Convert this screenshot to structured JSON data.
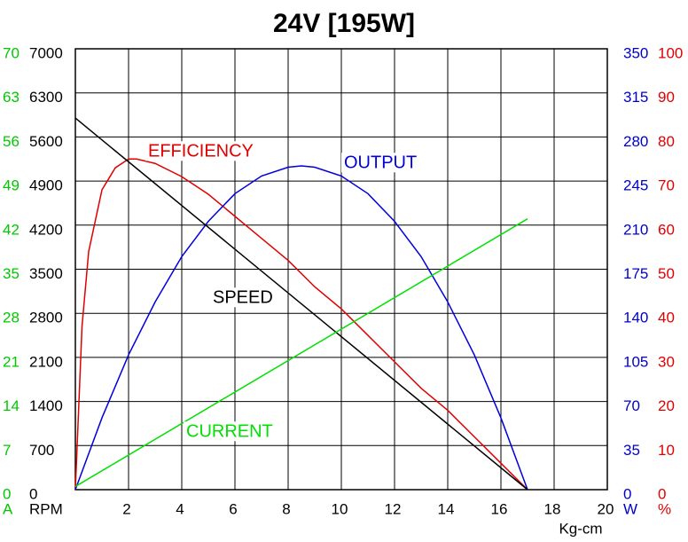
{
  "chart_data": {
    "type": "line",
    "title": "24V [195W]",
    "xlabel": "Kg-cm",
    "xlim": [
      0,
      20
    ],
    "xticks": [
      2,
      4,
      6,
      8,
      10,
      12,
      14,
      16,
      18,
      20
    ],
    "grid": true,
    "y_axes": [
      {
        "label": "A",
        "color": "#00c800",
        "side": "left",
        "lim": [
          0,
          70
        ],
        "ticks": [
          0,
          7,
          14,
          21,
          28,
          35,
          42,
          49,
          56,
          63,
          70
        ]
      },
      {
        "label": "RPM",
        "color": "#000000",
        "side": "left",
        "lim": [
          0,
          7000
        ],
        "ticks": [
          0,
          700,
          1400,
          2100,
          2800,
          3500,
          4200,
          4900,
          5600,
          6300,
          7000
        ]
      },
      {
        "label": "W",
        "color": "#0000cc",
        "side": "right",
        "lim": [
          0,
          350
        ],
        "ticks": [
          0,
          35,
          70,
          105,
          140,
          175,
          210,
          245,
          280,
          315,
          350
        ]
      },
      {
        "label": "%",
        "color": "#e00000",
        "side": "right",
        "lim": [
          0,
          100
        ],
        "ticks": [
          0,
          10,
          20,
          30,
          40,
          50,
          60,
          70,
          80,
          90,
          100
        ]
      }
    ],
    "series": [
      {
        "name": "EFFICIENCY",
        "color": "#e00000",
        "axis": 3,
        "x": [
          0,
          0.25,
          0.5,
          1,
          1.5,
          2,
          2.3,
          3,
          4,
          5,
          6,
          7,
          8,
          9,
          10,
          11,
          12,
          13,
          14,
          15,
          16,
          17
        ],
        "values": [
          0,
          37,
          54,
          68,
          73,
          75,
          75,
          74,
          71,
          67,
          62,
          57,
          52,
          46,
          41,
          35,
          29,
          23,
          18,
          12,
          6,
          0
        ]
      },
      {
        "name": "OUTPUT",
        "color": "#0000dd",
        "axis": 2,
        "x": [
          0,
          1,
          2,
          3,
          4,
          5,
          6,
          7,
          8,
          8.5,
          9,
          10,
          11,
          12,
          13,
          14,
          15,
          16,
          17
        ],
        "values": [
          0,
          57,
          107,
          149,
          185,
          213,
          235,
          249,
          256,
          257,
          256,
          249,
          235,
          213,
          185,
          149,
          107,
          57,
          0
        ]
      },
      {
        "name": "SPEED",
        "color": "#000000",
        "axis": 1,
        "x": [
          0,
          17
        ],
        "values": [
          5900,
          0
        ]
      },
      {
        "name": "CURRENT",
        "color": "#00e000",
        "axis": 0,
        "x": [
          0,
          17
        ],
        "values": [
          0.5,
          43
        ]
      }
    ]
  }
}
